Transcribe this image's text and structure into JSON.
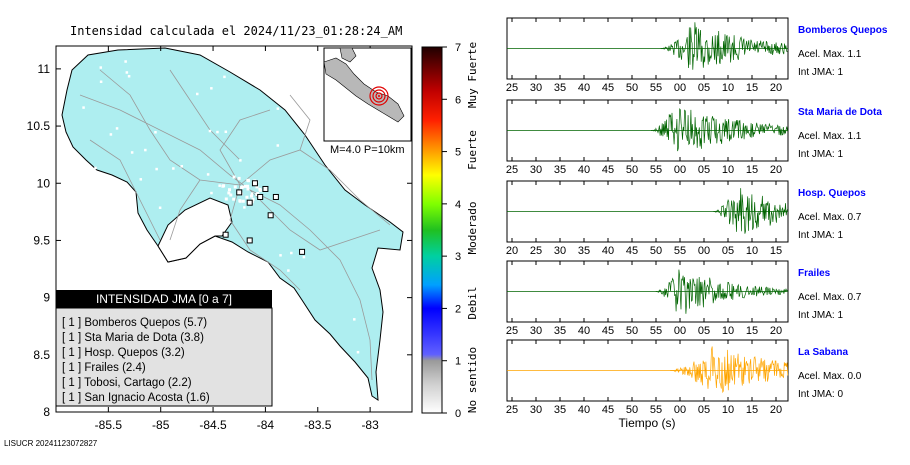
{
  "title": "Intensidad calculada el 2024/11/23_01:28:24_AM",
  "footer_id": "LISUCR 20241123072827",
  "inset_label": "M=4.0 P=10km",
  "colorbar": {
    "ticks": [
      "0",
      "1",
      "2",
      "3",
      "4",
      "5",
      "6",
      "7"
    ],
    "categories": [
      "No sentido",
      "Debil",
      "Moderado",
      "Fuerte",
      "Muy Fuerte"
    ]
  },
  "legend": {
    "header": "INTENSIDAD JMA [0 a 7]",
    "items": [
      "[ 1 ]  Bomberos Quepos (5.7)",
      "[ 1 ]  Sta Maria de Dota (3.8)",
      "[ 1 ]  Hosp. Quepos (3.2)",
      "[ 1 ]  Frailes (2.4)",
      "[ 1 ]  Tobosi, Cartago (2.2)",
      "[ 1 ]  San Ignacio Acosta (1.6)"
    ]
  },
  "time_axis_label": "Tiempo (s)",
  "chart_data": [
    {
      "type": "scatter",
      "title": "Intensidad calculada el 2024/11/23_01:28:24_AM",
      "x_ticks": [
        "-85.5",
        "-85",
        "-84.5",
        "-84",
        "-83.5",
        "-83"
      ],
      "y_ticks": [
        "8",
        "8.5",
        "9",
        "9.5",
        "10",
        "10.5",
        "11"
      ],
      "xlim": [
        -86.0,
        -82.6
      ],
      "ylim": [
        8.0,
        11.2
      ],
      "stations": [
        {
          "lon": -84.1,
          "lat": 10.0,
          "intensity": 1
        },
        {
          "lon": -84.0,
          "lat": 9.95,
          "intensity": 1
        },
        {
          "lon": -83.9,
          "lat": 9.88,
          "intensity": 1
        },
        {
          "lon": -84.15,
          "lat": 9.83,
          "intensity": 1
        },
        {
          "lon": -84.25,
          "lat": 9.92,
          "intensity": 1
        },
        {
          "lon": -83.95,
          "lat": 9.72,
          "intensity": 1
        },
        {
          "lon": -84.38,
          "lat": 9.55,
          "intensity": 1
        },
        {
          "lon": -84.15,
          "lat": 9.5,
          "intensity": 1
        },
        {
          "lon": -83.65,
          "lat": 9.4,
          "intensity": 1
        },
        {
          "lon": -84.05,
          "lat": 9.88,
          "intensity": 1
        }
      ]
    },
    {
      "type": "line",
      "traces": [
        {
          "name": "Bomberos Quepos",
          "accel": "Acel. Max. 1.1",
          "jma": "Int JMA: 1",
          "ticks": [
            "25",
            "30",
            "35",
            "40",
            "45",
            "50",
            "55",
            "00",
            "05",
            "10",
            "15",
            "20"
          ],
          "first_tick": 25,
          "color": "#006400",
          "onset": 57,
          "peak": 64,
          "decay": 12,
          "amp": 0.95
        },
        {
          "name": "Sta Maria de Dota",
          "accel": "Acel. Max. 1.1",
          "jma": "Int JMA: 1",
          "ticks": [
            "25",
            "30",
            "35",
            "40",
            "45",
            "50",
            "55",
            "00",
            "05",
            "10",
            "15",
            "20"
          ],
          "first_tick": 25,
          "color": "#006400",
          "onset": 55,
          "peak": 60,
          "decay": 14,
          "amp": 0.95
        },
        {
          "name": "Hosp. Quepos",
          "accel": "Acel. Max. 0.7",
          "jma": "Int JMA: 1",
          "ticks": [
            "20",
            "25",
            "30",
            "35",
            "40",
            "45",
            "50",
            "55",
            "00",
            "05",
            "10",
            "15"
          ],
          "first_tick": 20,
          "color": "#006400",
          "onset": 63,
          "peak": 68,
          "decay": 12,
          "amp": 0.9
        },
        {
          "name": "Frailes",
          "accel": "Acel. Max. 0.7",
          "jma": "Int JMA: 1",
          "ticks": [
            "25",
            "30",
            "35",
            "40",
            "45",
            "50",
            "55",
            "00",
            "05",
            "10",
            "15",
            "20"
          ],
          "first_tick": 25,
          "color": "#006400",
          "onset": 56,
          "peak": 61,
          "decay": 10,
          "amp": 0.95
        },
        {
          "name": "La Sabana",
          "accel": "Acel. Max. 0.0",
          "jma": "Int JMA: 0",
          "ticks": [
            "25",
            "30",
            "35",
            "40",
            "45",
            "50",
            "55",
            "00",
            "05",
            "10",
            "15",
            "20"
          ],
          "first_tick": 25,
          "color": "#ffa500",
          "onset": 59,
          "peak": 68,
          "decay": 14,
          "amp": 0.9
        }
      ]
    }
  ]
}
